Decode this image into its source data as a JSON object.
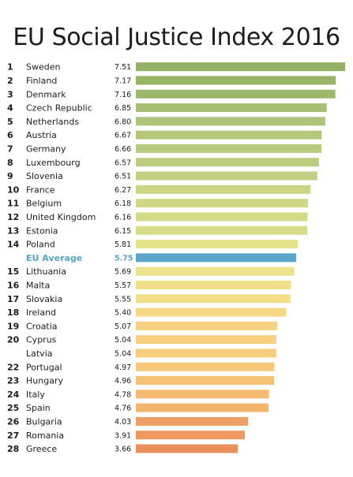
{
  "chart_data": {
    "type": "bar",
    "title": "EU Social Justice Index 2016",
    "orientation": "horizontal",
    "xlim": [
      0,
      7.51
    ],
    "grid": false,
    "legend": "none",
    "rows": [
      {
        "rank": "1",
        "country": "Sweden",
        "value": 7.51,
        "label": "7.51",
        "color": "#92b164"
      },
      {
        "rank": "2",
        "country": "Finland",
        "value": 7.17,
        "label": "7.17",
        "color": "#98b567"
      },
      {
        "rank": "3",
        "country": "Denmark",
        "value": 7.16,
        "label": "7.16",
        "color": "#9cb86a"
      },
      {
        "rank": "4",
        "country": "Czech Republic",
        "value": 6.85,
        "label": "6.85",
        "color": "#a8c073"
      },
      {
        "rank": "5",
        "country": "Netherlands",
        "value": 6.8,
        "label": "6.80",
        "color": "#aec478"
      },
      {
        "rank": "6",
        "country": "Austria",
        "value": 6.67,
        "label": "6.67",
        "color": "#b4c77b"
      },
      {
        "rank": "7",
        "country": "Germany",
        "value": 6.66,
        "label": "6.66",
        "color": "#b8ca7e"
      },
      {
        "rank": "8",
        "country": "Luxembourg",
        "value": 6.57,
        "label": "6.57",
        "color": "#bccd80"
      },
      {
        "rank": "9",
        "country": "Slovenia",
        "value": 6.51,
        "label": "6.51",
        "color": "#c0cf82"
      },
      {
        "rank": "10",
        "country": "France",
        "value": 6.27,
        "label": "6.27",
        "color": "#cbd584"
      },
      {
        "rank": "11",
        "country": "Belgium",
        "value": 6.18,
        "label": "6.18",
        "color": "#d0d886"
      },
      {
        "rank": "12",
        "country": "United Kingdom",
        "value": 6.16,
        "label": "6.16",
        "color": "#d3da87"
      },
      {
        "rank": "13",
        "country": "Estonia",
        "value": 6.15,
        "label": "6.15",
        "color": "#d6dc88"
      },
      {
        "rank": "14",
        "country": "Poland",
        "value": 5.81,
        "label": "5.81",
        "color": "#e4e18b"
      },
      {
        "rank": "",
        "country": "EU Average",
        "value": 5.75,
        "label": "5.75",
        "color": "#5aa5c9",
        "highlight": true
      },
      {
        "rank": "15",
        "country": "Lithuania",
        "value": 5.69,
        "label": "5.69",
        "color": "#ece28a"
      },
      {
        "rank": "16",
        "country": "Malta",
        "value": 5.57,
        "label": "5.57",
        "color": "#f1e089"
      },
      {
        "rank": "17",
        "country": "Slovakia",
        "value": 5.55,
        "label": "5.55",
        "color": "#f3dd87"
      },
      {
        "rank": "18",
        "country": "Ireland",
        "value": 5.4,
        "label": "5.40",
        "color": "#f5d884"
      },
      {
        "rank": "19",
        "country": "Croatia",
        "value": 5.07,
        "label": "5.07",
        "color": "#f6d280"
      },
      {
        "rank": "20",
        "country": "Cyprus",
        "value": 5.04,
        "label": "5.04",
        "color": "#f7cf7e"
      },
      {
        "rank": "",
        "country": "Latvia",
        "value": 5.04,
        "label": "5.04",
        "color": "#f7cc7c"
      },
      {
        "rank": "22",
        "country": "Portugal",
        "value": 4.97,
        "label": "4.97",
        "color": "#f6c778"
      },
      {
        "rank": "23",
        "country": "Hungary",
        "value": 4.96,
        "label": "4.96",
        "color": "#f5c275"
      },
      {
        "rank": "24",
        "country": "Italy",
        "value": 4.78,
        "label": "4.78",
        "color": "#f4bb71"
      },
      {
        "rank": "25",
        "country": "Spain",
        "value": 4.76,
        "label": "4.76",
        "color": "#f3b56d"
      },
      {
        "rank": "26",
        "country": "Bulgaria",
        "value": 4.03,
        "label": "4.03",
        "color": "#ee9f63"
      },
      {
        "rank": "27",
        "country": "Romania",
        "value": 3.91,
        "label": "3.91",
        "color": "#ec9860"
      },
      {
        "rank": "28",
        "country": "Greece",
        "value": 3.66,
        "label": "3.66",
        "color": "#ea905c"
      }
    ]
  }
}
